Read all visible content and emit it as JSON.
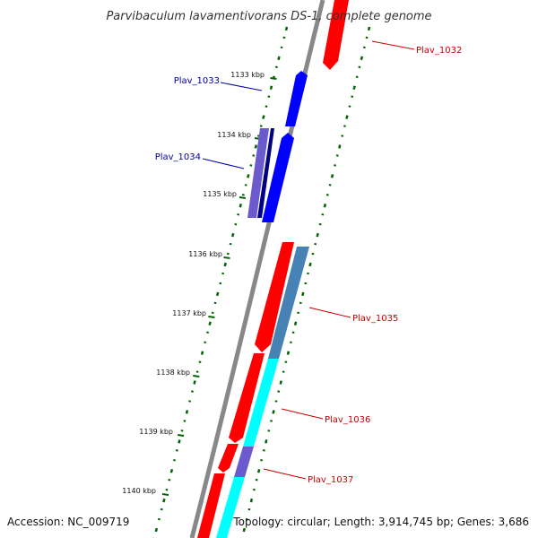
{
  "title": "Parvibaculum lavamentivorans DS-1, complete genome",
  "footer": {
    "accession": "Accession: NC_009719",
    "summary": "Topology: circular; Length: 3,914,745 bp; Genes: 3,686"
  },
  "ticks": [
    {
      "label": "1133 kbp"
    },
    {
      "label": "1134 kbp"
    },
    {
      "label": "1135 kbp"
    },
    {
      "label": "1136 kbp"
    },
    {
      "label": "1137 kbp"
    },
    {
      "label": "1138 kbp"
    },
    {
      "label": "1139 kbp"
    },
    {
      "label": "1140 kbp"
    }
  ],
  "gene_labels": [
    {
      "text": "Plav_1032",
      "color": "#cc0000"
    },
    {
      "text": "Plav_1033",
      "color": "#0000aa"
    },
    {
      "text": "Plav_1034",
      "color": "#0000aa"
    },
    {
      "text": "Plav_1035",
      "color": "#cc0000"
    },
    {
      "text": "Plav_1036",
      "color": "#cc0000"
    },
    {
      "text": "Plav_1037",
      "color": "#cc0000"
    }
  ],
  "colors": {
    "forward_cds": "#ff0000",
    "reverse_cds": "#0000ff",
    "steelblue_feature": "#4682b4",
    "cyan_feature": "#00ffff",
    "slate_feature": "#6a5acd",
    "navy_feature": "#000080",
    "backbone": "#888888",
    "tick": "#006400"
  }
}
